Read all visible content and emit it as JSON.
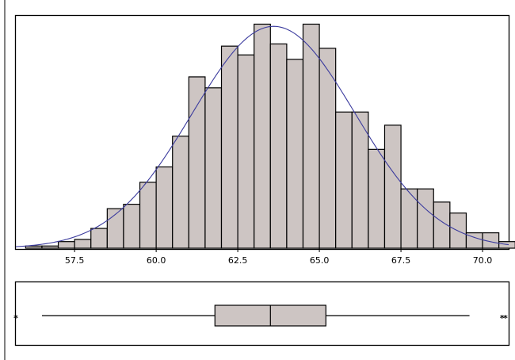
{
  "chart_data": [
    {
      "type": "bar",
      "subtype": "histogram-with-normal-curve",
      "title": "",
      "xlabel": "",
      "ylabel": "",
      "xlim": [
        55.7,
        70.8
      ],
      "ylim": [
        0,
        100
      ],
      "bin_width": 0.5,
      "bin_starts": [
        56.0,
        56.5,
        57.0,
        57.5,
        58.0,
        58.5,
        59.0,
        59.5,
        60.0,
        60.5,
        61.0,
        61.5,
        62.0,
        62.5,
        63.0,
        63.5,
        64.0,
        64.5,
        65.0,
        65.5,
        66.0,
        66.5,
        67.0,
        67.5,
        68.0,
        68.5,
        69.0,
        69.5,
        70.0,
        70.5
      ],
      "values": [
        1,
        1,
        3,
        4,
        9,
        18,
        20,
        30,
        37,
        51,
        78,
        73,
        92,
        88,
        102,
        93,
        86,
        102,
        91,
        62,
        62,
        45,
        56,
        27,
        27,
        21,
        16,
        7,
        7,
        3
      ],
      "fit_curve": {
        "name": "normal",
        "mean": 63.6,
        "sd": 2.5,
        "peak": 101,
        "color": "#3b3b9e"
      },
      "x_ticks": [
        "57.5",
        "60.0",
        "62.5",
        "65.0",
        "67.5",
        "70.0"
      ],
      "grid": false,
      "bar_color": "#cdc5c3"
    },
    {
      "type": "boxplot",
      "orientation": "horizontal",
      "whisker_low": 56.5,
      "q1": 61.8,
      "median": 63.5,
      "q3": 65.2,
      "whisker_high": 69.6,
      "outliers": [
        55.1,
        55.7,
        70.6,
        70.7
      ],
      "outlier_symbol": "*"
    }
  ]
}
